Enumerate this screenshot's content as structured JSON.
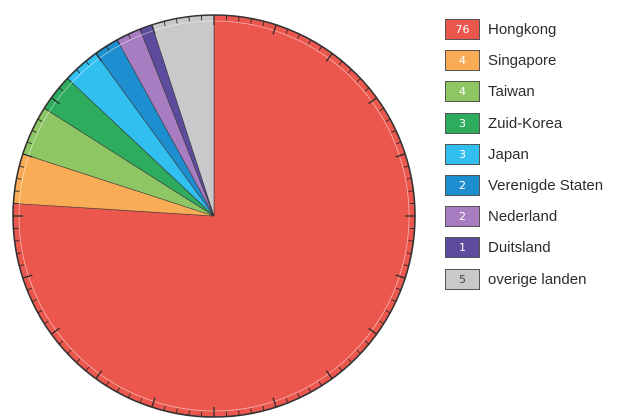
{
  "chart_data": {
    "type": "pie",
    "unit_note": "",
    "start": "12 o'clock, clockwise",
    "slices": [
      {
        "label": "Hongkong",
        "value": 76,
        "value_text": "76",
        "color": "#ec574d",
        "text_dark": false
      },
      {
        "label": "Singapore",
        "value": 4,
        "value_text": "4",
        "color": "#f9ac55",
        "text_dark": false
      },
      {
        "label": "Taiwan",
        "value": 4,
        "value_text": "4",
        "color": "#8dc663",
        "text_dark": false
      },
      {
        "label": "Zuid-Korea",
        "value": 3,
        "value_text": "3",
        "color": "#2cac5c",
        "text_dark": false
      },
      {
        "label": "Japan",
        "value": 3,
        "value_text": "3",
        "color": "#31bff0",
        "text_dark": false
      },
      {
        "label": "Verenigde Staten",
        "value": 2,
        "value_text": "2",
        "color": "#1d8fd0",
        "text_dark": false
      },
      {
        "label": "Nederland",
        "value": 2,
        "value_text": "2",
        "color": "#a77cc0",
        "text_dark": false
      },
      {
        "label": "Duitsland",
        "value": 1,
        "value_text": "1",
        "color": "#5d4c9d",
        "text_dark": false
      },
      {
        "label": "overige landen",
        "value": 5,
        "value_text": "5",
        "color": "#c8c9cb",
        "text_dark": true
      }
    ],
    "legend_position": "right",
    "rim_ticks": true
  }
}
